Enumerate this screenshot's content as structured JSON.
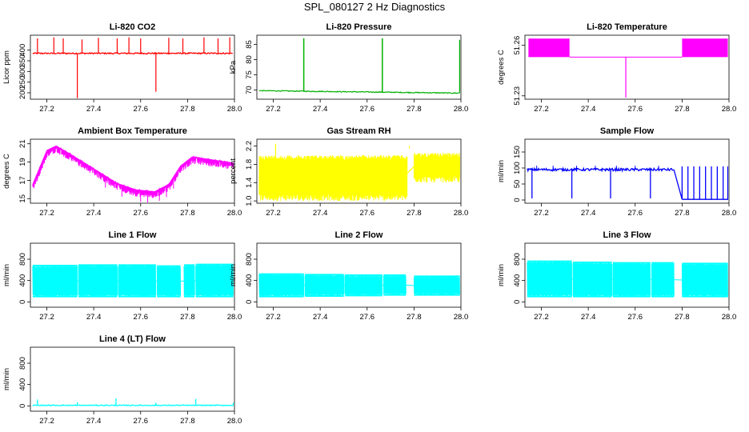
{
  "figure_title": "SPL_080127  2 Hz Diagnostics",
  "chart_data": [
    {
      "type": "line",
      "title": "Li-820 CO2",
      "xlabel": "",
      "ylabel": "Licor ppm",
      "x_ticks": [
        "27.2",
        "27.4",
        "27.6",
        "27.8",
        "28.0"
      ],
      "xlim": [
        27.13,
        28.0
      ],
      "y_ticks": [
        "200",
        "250",
        "300",
        "350",
        "400"
      ],
      "ylim": [
        170,
        470
      ],
      "color": "#ff0000",
      "baseline": 385,
      "noise": 6,
      "spikes": [
        {
          "x": 27.16,
          "y": 455
        },
        {
          "x": 27.23,
          "y": 460
        },
        {
          "x": 27.27,
          "y": 455
        },
        {
          "x": 27.33,
          "y": 175
        },
        {
          "x": 27.35,
          "y": 450
        },
        {
          "x": 27.42,
          "y": 458
        },
        {
          "x": 27.5,
          "y": 455
        },
        {
          "x": 27.55,
          "y": 460
        },
        {
          "x": 27.6,
          "y": 455
        },
        {
          "x": 27.665,
          "y": 205
        },
        {
          "x": 27.72,
          "y": 458
        },
        {
          "x": 27.78,
          "y": 455
        },
        {
          "x": 27.87,
          "y": 460
        },
        {
          "x": 27.93,
          "y": 455
        },
        {
          "x": 27.98,
          "y": 460
        }
      ]
    },
    {
      "type": "line",
      "title": "Li-820 Pressure",
      "xlabel": "",
      "ylabel": "kPa",
      "x_ticks": [
        "27.2",
        "27.4",
        "27.6",
        "27.8",
        "28.0"
      ],
      "xlim": [
        27.13,
        28.0
      ],
      "y_ticks": [
        "70",
        "75",
        "80",
        "85"
      ],
      "ylim": [
        67,
        88
      ],
      "color": "#00b000",
      "baseline_start": 69.8,
      "baseline_end": 69.0,
      "noise": 0.3,
      "spikes": [
        {
          "x": 27.33,
          "y": 87
        },
        {
          "x": 27.665,
          "y": 87
        },
        {
          "x": 27.995,
          "y": 86.5
        }
      ]
    },
    {
      "type": "bar",
      "title": "Li-820 Temperature",
      "xlabel": "",
      "ylabel": "degrees C",
      "x_ticks": [
        "27.2",
        "27.4",
        "27.6",
        "27.8",
        "28.0"
      ],
      "xlim": [
        27.13,
        28.0
      ],
      "y_ticks": [
        "51.23",
        "51.26"
      ],
      "ylim": [
        51.228,
        51.266
      ],
      "color": "#ff00ff",
      "base": 51.253,
      "oscillating_segments": [
        {
          "from": 27.145,
          "to": 27.32,
          "high": 51.264
        },
        {
          "from": 27.8,
          "to": 27.995,
          "high": 51.264
        }
      ],
      "dips": [
        {
          "x": 27.56,
          "y": 51.229
        }
      ]
    },
    {
      "type": "line",
      "title": "Ambient Box Temperature",
      "xlabel": "",
      "ylabel": "degrees C",
      "x_ticks": [
        "27.2",
        "27.4",
        "27.6",
        "27.8",
        "28.0"
      ],
      "xlim": [
        27.13,
        28.0
      ],
      "y_ticks": [
        "15",
        "17",
        "19",
        "21"
      ],
      "ylim": [
        14.5,
        21.5
      ],
      "color": "#ff00ff",
      "curve": [
        {
          "x": 27.14,
          "y": 16.6
        },
        {
          "x": 27.2,
          "y": 20.3
        },
        {
          "x": 27.24,
          "y": 20.8
        },
        {
          "x": 27.3,
          "y": 19.9
        },
        {
          "x": 27.4,
          "y": 18.3
        },
        {
          "x": 27.5,
          "y": 16.7
        },
        {
          "x": 27.58,
          "y": 16.0
        },
        {
          "x": 27.66,
          "y": 15.8
        },
        {
          "x": 27.72,
          "y": 16.6
        },
        {
          "x": 27.77,
          "y": 18.6
        },
        {
          "x": 27.82,
          "y": 19.6
        },
        {
          "x": 27.9,
          "y": 19.3
        },
        {
          "x": 28.0,
          "y": 18.9
        }
      ],
      "noise_band": 0.8
    },
    {
      "type": "bar",
      "title": "Gas Stream RH",
      "xlabel": "",
      "ylabel": "percent",
      "x_ticks": [
        "27.2",
        "27.4",
        "27.6",
        "27.8",
        "28.0"
      ],
      "xlim": [
        27.13,
        28.0
      ],
      "y_ticks": [
        "1.0",
        "1.4",
        "1.8",
        "2.2"
      ],
      "ylim": [
        0.95,
        2.35
      ],
      "color": "#ffff00",
      "segments": [
        {
          "from": 27.14,
          "to": 27.77,
          "low": 1.0,
          "high": 2.0
        },
        {
          "from": 27.8,
          "to": 27.995,
          "low": 1.4,
          "high": 2.05
        }
      ],
      "gap_value": 1.7
    },
    {
      "type": "line",
      "title": "Sample Flow",
      "xlabel": "",
      "ylabel": "ml/min",
      "x_ticks": [
        "27.2",
        "27.4",
        "27.6",
        "27.8",
        "28.0"
      ],
      "xlim": [
        27.13,
        28.0
      ],
      "y_ticks": [
        "0",
        "50",
        "100",
        "150"
      ],
      "ylim": [
        -10,
        190
      ],
      "color": "#0000ff",
      "baseline": 95,
      "drop_x": [
        27.16,
        27.33,
        27.495,
        27.665
      ],
      "drop_end": 27.765,
      "pulse_x": [
        27.8,
        27.825,
        27.85,
        27.875,
        27.9,
        27.925,
        27.95,
        27.975,
        27.995
      ],
      "pulse_high": 105,
      "pulse_low": 2
    },
    {
      "type": "bar",
      "title": "Line 1 Flow",
      "xlabel": "",
      "ylabel": "ml/min",
      "x_ticks": [
        "27.2",
        "27.4",
        "27.6",
        "27.8",
        "28.0"
      ],
      "xlim": [
        27.13,
        28.0
      ],
      "y_ticks": [
        "0",
        "400",
        "800"
      ],
      "ylim": [
        -100,
        1100
      ],
      "color": "#00ffff",
      "blocks": [
        {
          "from": 27.14,
          "to": 27.33,
          "low": 100,
          "high": 680
        },
        {
          "from": 27.335,
          "to": 27.5,
          "low": 100,
          "high": 690
        },
        {
          "from": 27.505,
          "to": 27.665,
          "low": 100,
          "high": 690
        },
        {
          "from": 27.67,
          "to": 27.77,
          "low": 100,
          "high": 670
        },
        {
          "from": 27.785,
          "to": 27.83,
          "low": 100,
          "high": 690
        },
        {
          "from": 27.835,
          "to": 27.995,
          "low": 100,
          "high": 700
        }
      ]
    },
    {
      "type": "bar",
      "title": "Line 2 Flow",
      "xlabel": "",
      "ylabel": "ml/min",
      "x_ticks": [
        "27.2",
        "27.4",
        "27.6",
        "27.8",
        "28.0"
      ],
      "xlim": [
        27.13,
        28.0
      ],
      "y_ticks": [
        "0",
        "400",
        "800"
      ],
      "ylim": [
        -100,
        1100
      ],
      "color": "#00ffff",
      "blocks": [
        {
          "from": 27.14,
          "to": 27.33,
          "low": 100,
          "high": 520
        },
        {
          "from": 27.335,
          "to": 27.5,
          "low": 110,
          "high": 510
        },
        {
          "from": 27.505,
          "to": 27.665,
          "low": 120,
          "high": 500
        },
        {
          "from": 27.67,
          "to": 27.765,
          "low": 130,
          "high": 500
        },
        {
          "from": 27.8,
          "to": 27.995,
          "low": 130,
          "high": 480
        }
      ]
    },
    {
      "type": "bar",
      "title": "Line 3 Flow",
      "xlabel": "",
      "ylabel": "ml/min",
      "x_ticks": [
        "27.2",
        "27.4",
        "27.6",
        "27.8",
        "28.0"
      ],
      "xlim": [
        27.13,
        28.0
      ],
      "y_ticks": [
        "0",
        "400",
        "800"
      ],
      "ylim": [
        -100,
        1100
      ],
      "color": "#00ffff",
      "blocks": [
        {
          "from": 27.14,
          "to": 27.33,
          "low": 100,
          "high": 760
        },
        {
          "from": 27.335,
          "to": 27.5,
          "low": 100,
          "high": 740
        },
        {
          "from": 27.505,
          "to": 27.665,
          "low": 100,
          "high": 730
        },
        {
          "from": 27.67,
          "to": 27.765,
          "low": 100,
          "high": 730
        },
        {
          "from": 27.8,
          "to": 27.995,
          "low": 100,
          "high": 720
        }
      ]
    },
    {
      "type": "line",
      "title": "Line 4 (LT) Flow",
      "xlabel": "",
      "ylabel": "ml/min",
      "x_ticks": [
        "27.2",
        "27.4",
        "27.6",
        "27.8",
        "28.0"
      ],
      "xlim": [
        27.13,
        28.0
      ],
      "y_ticks": [
        "0",
        "400",
        "800"
      ],
      "ylim": [
        -100,
        1100
      ],
      "color": "#00ffff",
      "baseline": 10,
      "spikes": [
        {
          "x": 27.16,
          "y": 120
        },
        {
          "x": 27.33,
          "y": 70
        },
        {
          "x": 27.495,
          "y": 140
        },
        {
          "x": 27.665,
          "y": 60
        },
        {
          "x": 27.835,
          "y": 130
        },
        {
          "x": 27.995,
          "y": 60
        }
      ]
    }
  ]
}
